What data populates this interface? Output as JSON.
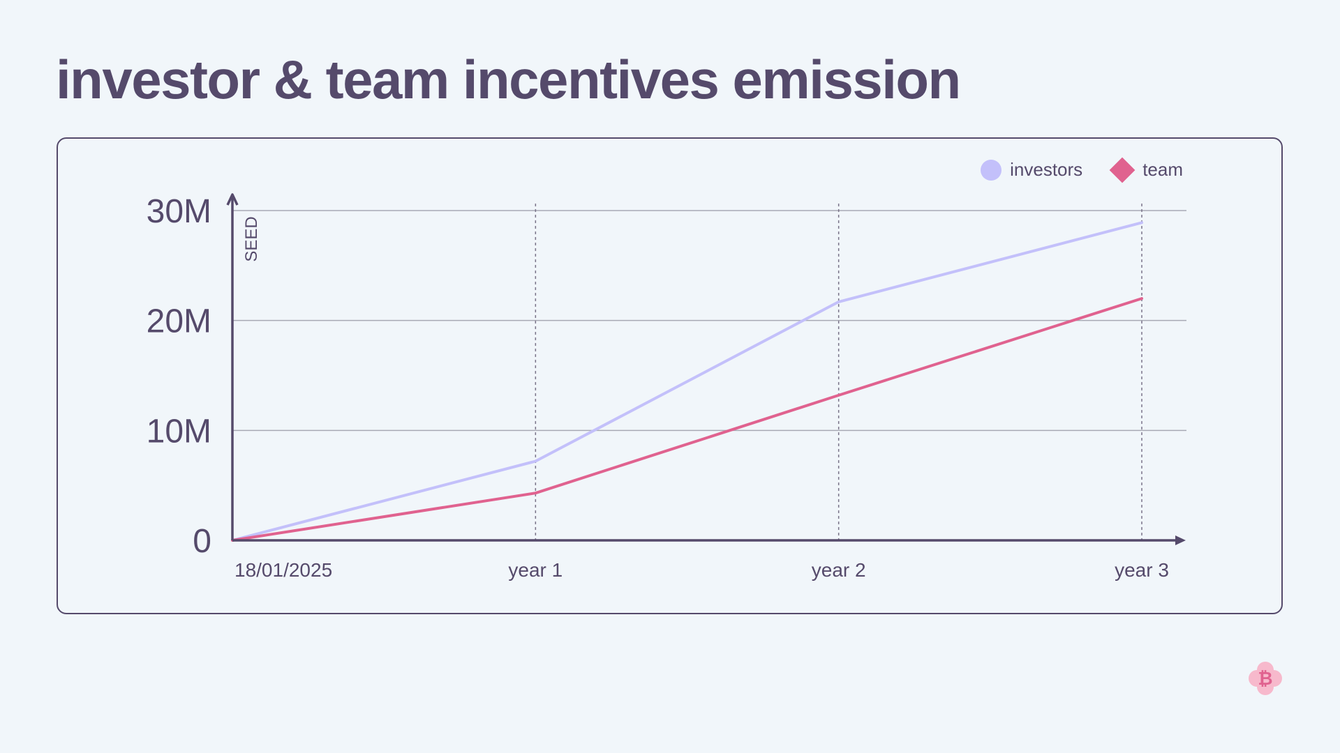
{
  "page": {
    "title": "investor & team incentives emission"
  },
  "colors": {
    "background": "#f1f6fa",
    "text": "#554a6b",
    "investors": "#c3c0fa",
    "team": "#e0628f",
    "grid": "#a7a9b4",
    "logo": "#f7b9cc"
  },
  "brand": {
    "icon": "bitcoin-flower-logo"
  },
  "chart_data": {
    "type": "line",
    "title": "",
    "xlabel": "",
    "ylabel": "SEED",
    "categories": [
      "18/01/2025",
      "year 1",
      "year 2",
      "year 3"
    ],
    "series": [
      {
        "name": "investors",
        "values": [
          0,
          7.2,
          21.7,
          28.9
        ],
        "color": "#c3c0fa",
        "marker": "circle"
      },
      {
        "name": "team",
        "values": [
          0,
          4.3,
          13.2,
          22.0
        ],
        "color": "#e0628f",
        "marker": "diamond"
      }
    ],
    "unit": "M",
    "ylim": [
      0,
      30
    ],
    "yticks": [
      {
        "value": 0,
        "label": "0"
      },
      {
        "value": 10,
        "label": "10M"
      },
      {
        "value": 20,
        "label": "20M"
      },
      {
        "value": 30,
        "label": "30M"
      }
    ],
    "grid": {
      "horizontal": true,
      "vertical_dotted": true
    },
    "legend": "top-right"
  }
}
